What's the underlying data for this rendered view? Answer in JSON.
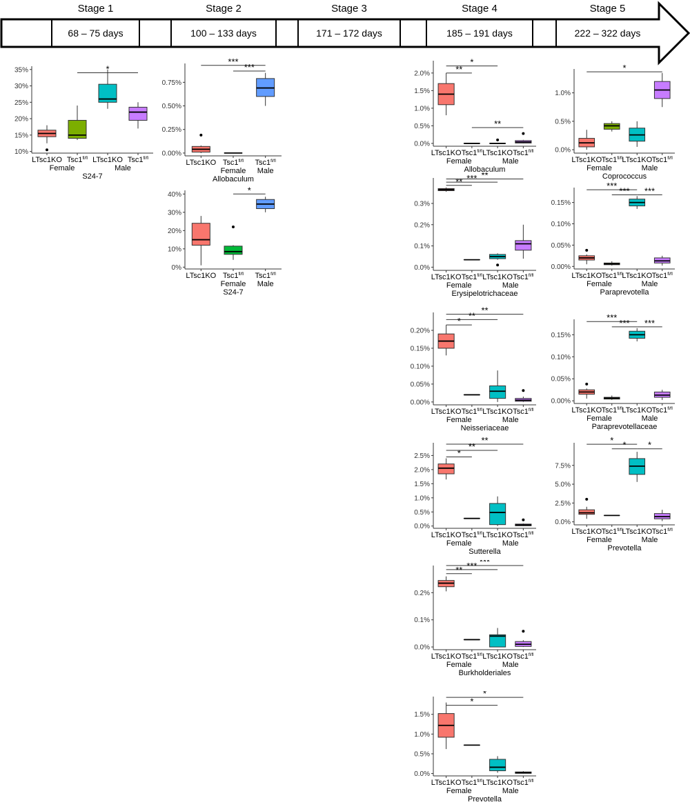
{
  "timeline": {
    "stages": [
      {
        "label": "Stage 1",
        "days": "68 – 75 days"
      },
      {
        "label": "Stage 2",
        "days": "100 – 133 days"
      },
      {
        "label": "Stage 3",
        "days": "171 – 172 days"
      },
      {
        "label": "Stage 4",
        "days": "185 – 191 days"
      },
      {
        "label": "Stage 5",
        "days": "222 – 322 days"
      }
    ]
  },
  "colors": {
    "ltsc1ko_female": "#F8766D",
    "tsc1_female": "#7CAE00",
    "ltsc1ko_male": "#00BFC4",
    "tsc1_male": "#C77CFF",
    "tsc1_male_stage2": "#619CFF",
    "tsc1_female_stage2": "#00BA38",
    "dark_red": "#B2403A"
  },
  "chart_data": [
    {
      "type": "box",
      "stage": "Stage 1",
      "title": "S24-7",
      "groups": [
        "LTsc1KO",
        "Tsc1",
        "LTsc1KO",
        "Tsc1"
      ],
      "sexes": [
        "Female",
        "Male"
      ],
      "yticks": [
        "10%",
        "15%",
        "20%",
        "25%",
        "30%",
        "35%"
      ],
      "ylim": [
        9.5,
        36
      ],
      "boxes": [
        {
          "min": 12.5,
          "q1": 14.5,
          "median": 15.5,
          "q3": 16.5,
          "max": 18,
          "outliers": [
            10.5
          ],
          "color": "#F8766D"
        },
        {
          "min": 13.5,
          "q1": 14,
          "median": 15,
          "q3": 19.5,
          "max": 24,
          "outliers": [],
          "color": "#7CAE00"
        },
        {
          "min": 23,
          "q1": 25,
          "median": 26,
          "q3": 30.5,
          "max": 35,
          "outliers": [],
          "color": "#00BFC4"
        },
        {
          "min": 17,
          "q1": 19.5,
          "median": 22,
          "q3": 23.5,
          "max": 25,
          "outliers": [],
          "color": "#C77CFF"
        }
      ],
      "sig": [
        {
          "from": 1,
          "to": 3,
          "label": "*",
          "y": 34
        }
      ]
    },
    {
      "type": "box",
      "stage": "Stage 2",
      "title": "Allobaculum",
      "groups": [
        "LTsc1KO",
        "Tsc1",
        "Tsc1"
      ],
      "sexes": [
        "Female",
        "Male"
      ],
      "yticks": [
        "0.00%",
        "0.25%",
        "0.50%",
        "0.75%"
      ],
      "ylim": [
        -0.03,
        0.95
      ],
      "boxes": [
        {
          "min": 0,
          "q1": 0.01,
          "median": 0.04,
          "q3": 0.07,
          "max": 0.08,
          "outliers": [
            0.19
          ],
          "color": "#F8766D"
        },
        {
          "min": 0,
          "q1": 0,
          "median": 0,
          "q3": 0,
          "max": 0,
          "outliers": [],
          "color": "#00BA38"
        },
        {
          "min": 0.5,
          "q1": 0.6,
          "median": 0.69,
          "q3": 0.79,
          "max": 0.85,
          "outliers": [],
          "color": "#619CFF"
        }
      ],
      "sig": [
        {
          "from": 0,
          "to": 2,
          "label": "***",
          "y": 0.93
        },
        {
          "from": 1,
          "to": 2,
          "label": "***",
          "y": 0.87
        }
      ]
    },
    {
      "type": "box",
      "stage": "Stage 2",
      "title": "S24-7",
      "groups": [
        "LTsc1KO",
        "Tsc1",
        "Tsc1"
      ],
      "sexes": [
        "Female",
        "Male"
      ],
      "yticks": [
        "0%",
        "10%",
        "20%",
        "30%",
        "40%"
      ],
      "ylim": [
        -1,
        42
      ],
      "boxes": [
        {
          "min": 1,
          "q1": 12,
          "median": 15,
          "q3": 24,
          "max": 28,
          "outliers": [],
          "color": "#F8766D"
        },
        {
          "min": 4,
          "q1": 7,
          "median": 8.5,
          "q3": 11.5,
          "max": 12,
          "outliers": [
            22
          ],
          "color": "#00BA38"
        },
        {
          "min": 30,
          "q1": 32,
          "median": 34.5,
          "q3": 37,
          "max": 38.5,
          "outliers": [],
          "color": "#619CFF"
        }
      ],
      "sig": [
        {
          "from": 1,
          "to": 2,
          "label": "*",
          "y": 40
        }
      ]
    },
    {
      "type": "box",
      "stage": "Stage 4",
      "title": "Allobaculum",
      "groups": [
        "LTsc1KO",
        "Tsc1",
        "LTsc1KO",
        "Tsc1"
      ],
      "sexes": [
        "Female",
        "Male"
      ],
      "yticks": [
        "0.0%",
        "0.5%",
        "1.0%",
        "1.5%",
        "2.0%"
      ],
      "ylim": [
        -0.08,
        2.35
      ],
      "boxes": [
        {
          "min": 0.8,
          "q1": 1.1,
          "median": 1.4,
          "q3": 1.7,
          "max": 2.0,
          "outliers": [],
          "color": "#F8766D"
        },
        {
          "min": 0,
          "q1": 0,
          "median": 0,
          "q3": 0,
          "max": 0,
          "outliers": [],
          "color": "#7CAE00"
        },
        {
          "min": 0,
          "q1": 0,
          "median": 0,
          "q3": 0,
          "max": 0.02,
          "outliers": [
            0.1
          ],
          "color": "#00BFC4"
        },
        {
          "min": 0,
          "q1": 0.01,
          "median": 0.04,
          "q3": 0.08,
          "max": 0.1,
          "outliers": [
            0.28
          ],
          "color": "#C77CFF"
        }
      ],
      "sig": [
        {
          "from": 0,
          "to": 2,
          "label": "*",
          "y": 2.2
        },
        {
          "from": 0,
          "to": 1,
          "label": "**",
          "y": 2.0
        },
        {
          "from": 1,
          "to": 3,
          "label": "**",
          "y": 0.45
        }
      ]
    },
    {
      "type": "box",
      "stage": "Stage 5",
      "title": "Coprococcus",
      "groups": [
        "LTsc1KO",
        "Tsc1",
        "LTsc1KO",
        "Tsc1"
      ],
      "sexes": [
        "Female",
        "Male"
      ],
      "yticks": [
        "0.0%",
        "0.5%",
        "1.0%"
      ],
      "ylim": [
        -0.06,
        1.42
      ],
      "boxes": [
        {
          "min": 0,
          "q1": 0.05,
          "median": 0.12,
          "q3": 0.2,
          "max": 0.35,
          "outliers": [],
          "color": "#F8766D"
        },
        {
          "min": 0.32,
          "q1": 0.36,
          "median": 0.42,
          "q3": 0.46,
          "max": 0.5,
          "outliers": [],
          "color": "#7CAE00"
        },
        {
          "min": 0.05,
          "q1": 0.15,
          "median": 0.26,
          "q3": 0.38,
          "max": 0.5,
          "outliers": [],
          "color": "#00BFC4"
        },
        {
          "min": 0.75,
          "q1": 0.9,
          "median": 1.05,
          "q3": 1.2,
          "max": 1.35,
          "outliers": [],
          "color": "#C77CFF"
        }
      ],
      "sig": [
        {
          "from": 0,
          "to": 3,
          "label": "*",
          "y": 1.37
        }
      ]
    },
    {
      "type": "box",
      "stage": "Stage 4",
      "title": "Erysipelotrichaceae",
      "groups": [
        "LTsc1KO",
        "Tsc1",
        "LTsc1KO",
        "Tsc1"
      ],
      "sexes": [
        "Female",
        "Male"
      ],
      "yticks": [
        "0.0%",
        "0.1%",
        "0.2%",
        "0.3%"
      ],
      "ylim": [
        -0.015,
        0.42
      ],
      "boxes": [
        {
          "min": 0.355,
          "q1": 0.36,
          "median": 0.365,
          "q3": 0.37,
          "max": 0.375,
          "outliers": [],
          "color": "#B2403A"
        },
        {
          "min": 0.035,
          "q1": 0.035,
          "median": 0.035,
          "q3": 0.035,
          "max": 0.035,
          "outliers": [],
          "color": "#7CAE00"
        },
        {
          "min": 0.035,
          "q1": 0.04,
          "median": 0.05,
          "q3": 0.06,
          "max": 0.065,
          "outliers": [
            0.01
          ],
          "color": "#00BFC4"
        },
        {
          "min": 0.04,
          "q1": 0.08,
          "median": 0.11,
          "q3": 0.125,
          "max": 0.2,
          "outliers": [],
          "color": "#C77CFF"
        }
      ],
      "sig": [
        {
          "from": 0,
          "to": 3,
          "label": "**",
          "y": 0.415
        },
        {
          "from": 0,
          "to": 2,
          "label": "***",
          "y": 0.4
        },
        {
          "from": 0,
          "to": 1,
          "label": "**",
          "y": 0.385
        }
      ]
    },
    {
      "type": "box",
      "stage": "Stage 5",
      "title": "Paraprevotella",
      "groups": [
        "LTsc1KO",
        "Tsc1",
        "LTsc1KO",
        "Tsc1"
      ],
      "sexes": [
        "Female",
        "Male"
      ],
      "yticks": [
        "0.00%",
        "0.05%",
        "0.10%",
        "0.15%"
      ],
      "ylim": [
        -0.006,
        0.185
      ],
      "boxes": [
        {
          "min": 0.005,
          "q1": 0.015,
          "median": 0.02,
          "q3": 0.025,
          "max": 0.028,
          "outliers": [
            0.038
          ],
          "color": "#F8766D"
        },
        {
          "min": 0.002,
          "q1": 0.004,
          "median": 0.006,
          "q3": 0.008,
          "max": 0.012,
          "outliers": [],
          "color": "#7CAE00"
        },
        {
          "min": 0.135,
          "q1": 0.142,
          "median": 0.15,
          "q3": 0.158,
          "max": 0.165,
          "outliers": [],
          "color": "#00BFC4"
        },
        {
          "min": 0.002,
          "q1": 0.008,
          "median": 0.013,
          "q3": 0.02,
          "max": 0.025,
          "outliers": [],
          "color": "#C77CFF"
        }
      ],
      "sig": [
        {
          "from": 0,
          "to": 2,
          "label": "***",
          "y": 0.18
        },
        {
          "from": 1,
          "to": 2,
          "label": "***",
          "y": 0.168
        },
        {
          "from": 2,
          "to": 3,
          "label": "***",
          "y": 0.168
        }
      ]
    },
    {
      "type": "box",
      "stage": "Stage 4",
      "title": "Neisseriaceae",
      "groups": [
        "LTsc1KO",
        "Tsc1",
        "LTsc1KO",
        "Tsc1"
      ],
      "sexes": [
        "Female",
        "Male"
      ],
      "yticks": [
        "0.00%",
        "0.05%",
        "0.10%",
        "0.15%",
        "0.20%"
      ],
      "ylim": [
        -0.008,
        0.25
      ],
      "boxes": [
        {
          "min": 0.13,
          "q1": 0.15,
          "median": 0.17,
          "q3": 0.19,
          "max": 0.215,
          "outliers": [],
          "color": "#F8766D"
        },
        {
          "min": 0.02,
          "q1": 0.02,
          "median": 0.02,
          "q3": 0.02,
          "max": 0.02,
          "outliers": [],
          "color": "#7CAE00"
        },
        {
          "min": 0,
          "q1": 0.01,
          "median": 0.03,
          "q3": 0.045,
          "max": 0.088,
          "outliers": [],
          "color": "#00BFC4"
        },
        {
          "min": 0,
          "q1": 0.002,
          "median": 0.005,
          "q3": 0.01,
          "max": 0.015,
          "outliers": [
            0.032
          ],
          "color": "#C77CFF"
        }
      ],
      "sig": [
        {
          "from": 0,
          "to": 3,
          "label": "**",
          "y": 0.245
        },
        {
          "from": 0,
          "to": 2,
          "label": "**",
          "y": 0.23
        },
        {
          "from": 0,
          "to": 1,
          "label": "*",
          "y": 0.215
        }
      ]
    },
    {
      "type": "box",
      "stage": "Stage 5",
      "title": "Paraprevotellaceae",
      "groups": [
        "LTsc1KO",
        "Tsc1",
        "LTsc1KO",
        "Tsc1"
      ],
      "sexes": [
        "Female",
        "Male"
      ],
      "yticks": [
        "0.00%",
        "0.05%",
        "0.10%",
        "0.15%"
      ],
      "ylim": [
        -0.006,
        0.185
      ],
      "boxes": [
        {
          "min": 0.005,
          "q1": 0.015,
          "median": 0.02,
          "q3": 0.025,
          "max": 0.028,
          "outliers": [
            0.038
          ],
          "color": "#F8766D"
        },
        {
          "min": 0.002,
          "q1": 0.004,
          "median": 0.006,
          "q3": 0.008,
          "max": 0.012,
          "outliers": [],
          "color": "#7CAE00"
        },
        {
          "min": 0.135,
          "q1": 0.142,
          "median": 0.15,
          "q3": 0.158,
          "max": 0.165,
          "outliers": [],
          "color": "#00BFC4"
        },
        {
          "min": 0.002,
          "q1": 0.008,
          "median": 0.013,
          "q3": 0.02,
          "max": 0.025,
          "outliers": [],
          "color": "#C77CFF"
        }
      ],
      "sig": [
        {
          "from": 0,
          "to": 2,
          "label": "***",
          "y": 0.18
        },
        {
          "from": 1,
          "to": 2,
          "label": "***",
          "y": 0.168
        },
        {
          "from": 2,
          "to": 3,
          "label": "***",
          "y": 0.168
        }
      ]
    },
    {
      "type": "box",
      "stage": "Stage 4",
      "title": "Sutterella",
      "groups": [
        "LTsc1KO",
        "Tsc1",
        "LTsc1KO",
        "Tsc1"
      ],
      "sexes": [
        "Female",
        "Male"
      ],
      "yticks": [
        "0.0%",
        "0.5%",
        "1.0%",
        "1.5%",
        "2.0%",
        "2.5%"
      ],
      "ylim": [
        -0.08,
        2.95
      ],
      "boxes": [
        {
          "min": 1.65,
          "q1": 1.85,
          "median": 2.05,
          "q3": 2.2,
          "max": 2.4,
          "outliers": [],
          "color": "#F8766D"
        },
        {
          "min": 0.27,
          "q1": 0.27,
          "median": 0.27,
          "q3": 0.27,
          "max": 0.27,
          "outliers": [],
          "color": "#7CAE00"
        },
        {
          "min": 0,
          "q1": 0.05,
          "median": 0.48,
          "q3": 0.8,
          "max": 1.05,
          "outliers": [],
          "color": "#00BFC4"
        },
        {
          "min": 0,
          "q1": 0.01,
          "median": 0.04,
          "q3": 0.07,
          "max": 0.09,
          "outliers": [
            0.22
          ],
          "color": "#C77CFF"
        }
      ],
      "sig": [
        {
          "from": 0,
          "to": 3,
          "label": "**",
          "y": 2.9
        },
        {
          "from": 0,
          "to": 2,
          "label": "**",
          "y": 2.68
        },
        {
          "from": 0,
          "to": 1,
          "label": "*",
          "y": 2.45
        }
      ]
    },
    {
      "type": "box",
      "stage": "Stage 5",
      "title": "Prevotella",
      "groups": [
        "LTsc1KO",
        "Tsc1",
        "LTsc1KO",
        "Tsc1"
      ],
      "sexes": [
        "Female",
        "Male"
      ],
      "yticks": [
        "0.0%",
        "2.5%",
        "5.0%",
        "7.5%"
      ],
      "ylim": [
        -0.4,
        10.5
      ],
      "boxes": [
        {
          "min": 0.4,
          "q1": 1,
          "median": 1.2,
          "q3": 1.6,
          "max": 2,
          "outliers": [
            3
          ],
          "color": "#F8766D"
        },
        {
          "min": 0.85,
          "q1": 0.85,
          "median": 0.85,
          "q3": 0.85,
          "max": 0.85,
          "outliers": [],
          "color": "#7CAE00"
        },
        {
          "min": 5.3,
          "q1": 6.3,
          "median": 7.4,
          "q3": 8.4,
          "max": 9.3,
          "outliers": [],
          "color": "#00BFC4"
        },
        {
          "min": 0.1,
          "q1": 0.4,
          "median": 0.7,
          "q3": 1.1,
          "max": 1.6,
          "outliers": [],
          "color": "#C77CFF"
        }
      ],
      "sig": [
        {
          "from": 0,
          "to": 2,
          "label": "*",
          "y": 10.3
        },
        {
          "from": 1,
          "to": 2,
          "label": "*",
          "y": 9.7
        },
        {
          "from": 2,
          "to": 3,
          "label": "*",
          "y": 9.7
        }
      ]
    },
    {
      "type": "box",
      "stage": "Stage 4",
      "title": "Burkholderiales",
      "groups": [
        "LTsc1KO",
        "Tsc1",
        "LTsc1KO",
        "Tsc1"
      ],
      "sexes": [
        "Female",
        "Male"
      ],
      "yticks": [
        "0.0%",
        "0.1%",
        "0.2%"
      ],
      "ylim": [
        -0.01,
        0.3
      ],
      "boxes": [
        {
          "min": 0.205,
          "q1": 0.222,
          "median": 0.235,
          "q3": 0.245,
          "max": 0.26,
          "outliers": [],
          "color": "#F8766D"
        },
        {
          "min": 0.027,
          "q1": 0.027,
          "median": 0.027,
          "q3": 0.027,
          "max": 0.027,
          "outliers": [],
          "color": "#7CAE00"
        },
        {
          "min": 0,
          "q1": 0,
          "median": 0.04,
          "q3": 0.045,
          "max": 0.07,
          "outliers": [],
          "color": "#00BFC4"
        },
        {
          "min": 0,
          "q1": 0.002,
          "median": 0.01,
          "q3": 0.02,
          "max": 0.025,
          "outliers": [
            0.058
          ],
          "color": "#C77CFF"
        }
      ],
      "sig": [
        {
          "from": 0,
          "to": 3,
          "label": "***",
          "y": 0.3
        },
        {
          "from": 0,
          "to": 2,
          "label": "***",
          "y": 0.285
        },
        {
          "from": 0,
          "to": 1,
          "label": "**",
          "y": 0.27
        }
      ]
    },
    {
      "type": "box",
      "stage": "Stage 4",
      "title": "Prevotella",
      "groups": [
        "LTsc1KO",
        "Tsc1",
        "LTsc1KO",
        "Tsc1"
      ],
      "sexes": [
        "Female",
        "Male"
      ],
      "yticks": [
        "0.0%",
        "0.5%",
        "1.0%",
        "1.5%"
      ],
      "ylim": [
        -0.06,
        1.95
      ],
      "boxes": [
        {
          "min": 0.62,
          "q1": 0.92,
          "median": 1.22,
          "q3": 1.52,
          "max": 1.8,
          "outliers": [],
          "color": "#F8766D"
        },
        {
          "min": 0.72,
          "q1": 0.72,
          "median": 0.72,
          "q3": 0.72,
          "max": 0.72,
          "outliers": [],
          "color": "#7CAE00"
        },
        {
          "min": 0.02,
          "q1": 0.07,
          "median": 0.16,
          "q3": 0.36,
          "max": 0.44,
          "outliers": [],
          "color": "#00BFC4"
        },
        {
          "min": 0,
          "q1": 0.005,
          "median": 0.02,
          "q3": 0.04,
          "max": 0.06,
          "outliers": [],
          "color": "#C77CFF"
        }
      ],
      "sig": [
        {
          "from": 0,
          "to": 3,
          "label": "*",
          "y": 1.93
        },
        {
          "from": 0,
          "to": 2,
          "label": "*",
          "y": 1.73
        }
      ]
    }
  ],
  "tick_label_suffix": "fl/fl"
}
